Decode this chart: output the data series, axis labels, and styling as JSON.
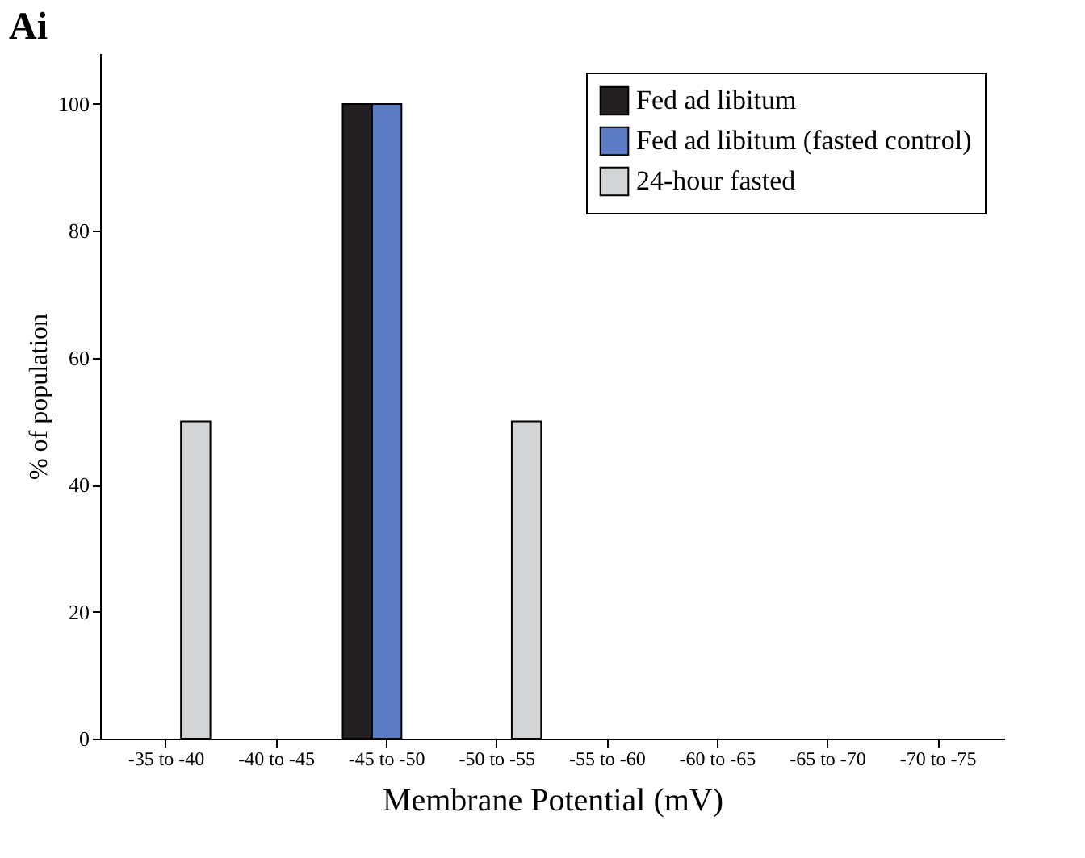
{
  "chart_data": {
    "type": "bar",
    "title": "Ai",
    "xlabel": "Membrane Potential (mV)",
    "ylabel": "% of population",
    "categories": [
      "-35 to -40",
      "-40 to -45",
      "-45 to -50",
      "-50 to -55",
      "-55 to -60",
      "-60 to -65",
      "-65 to -70",
      "-70 to -75"
    ],
    "series": [
      {
        "name": "Fed ad libitum",
        "color": "#231f20",
        "values": [
          null,
          null,
          100,
          null,
          null,
          null,
          null,
          null
        ]
      },
      {
        "name": "Fed ad libitum (fasted control)",
        "color": "#5b7bc4",
        "values": [
          null,
          null,
          100,
          null,
          null,
          null,
          null,
          null
        ]
      },
      {
        "name": "24-hour fasted",
        "color": "#d3d4d6",
        "values": [
          50,
          null,
          null,
          50,
          null,
          null,
          null,
          null
        ]
      }
    ],
    "ylim": [
      0,
      108
    ],
    "yticks": [
      0,
      20,
      40,
      60,
      80,
      100
    ],
    "grid": false,
    "legend": "top right"
  }
}
